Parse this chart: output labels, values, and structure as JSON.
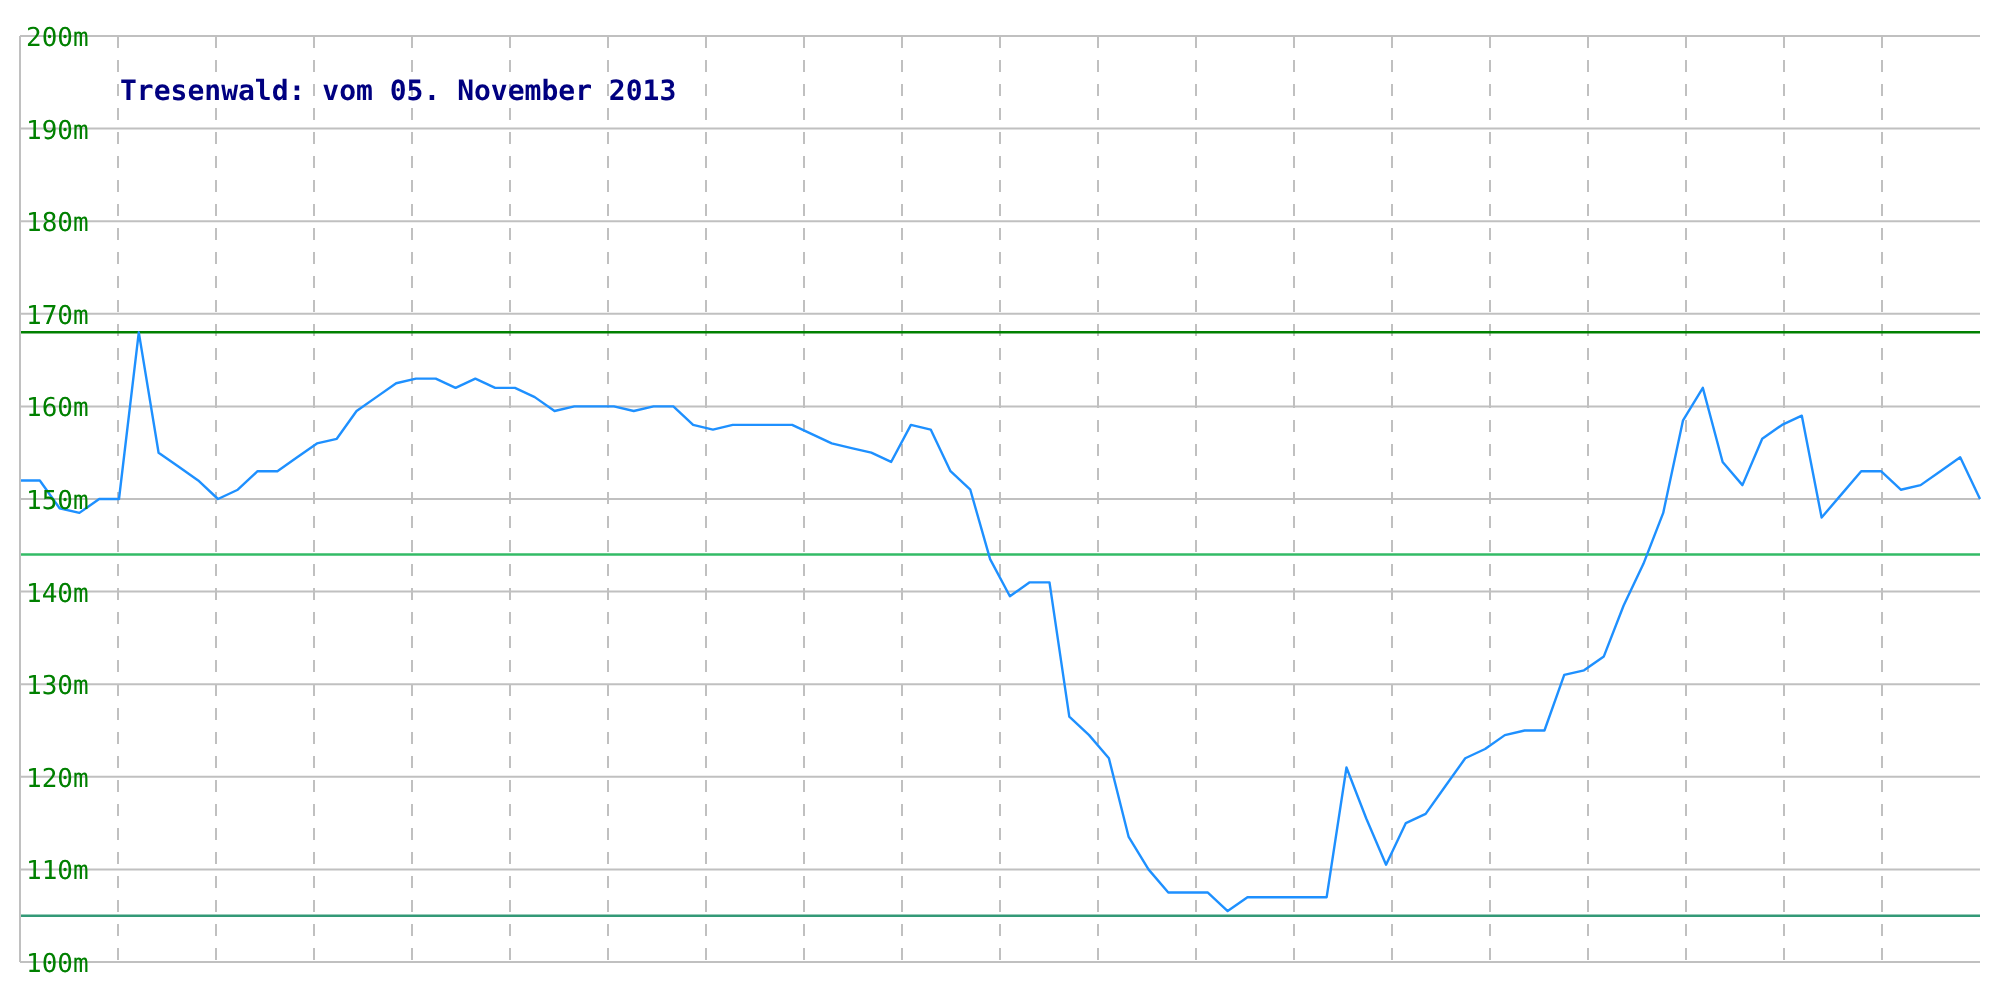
{
  "chart_data": {
    "type": "line",
    "title": "Tresenwald: vom 05. November 2013",
    "categories": [
      null,
      null,
      null,
      null,
      null,
      null,
      null,
      null,
      null,
      null,
      null,
      null,
      null,
      null,
      null,
      null,
      null,
      null,
      null,
      null,
      null,
      null,
      null,
      null,
      null,
      null,
      null,
      null,
      null,
      null,
      null,
      null,
      null,
      null,
      null,
      null,
      null,
      null,
      null,
      null,
      null,
      null,
      null,
      null,
      null,
      null,
      null,
      null,
      null,
      null,
      null,
      null,
      null,
      null,
      null,
      null,
      null,
      null,
      null,
      null,
      null,
      null,
      null,
      null,
      null,
      null,
      null,
      null,
      null,
      null,
      null,
      null,
      null,
      null,
      null,
      null,
      null,
      null,
      null,
      null,
      null,
      null,
      null,
      null,
      null,
      null,
      null,
      null,
      null,
      null,
      null,
      null,
      null,
      null,
      null,
      null,
      null,
      null,
      null,
      null
    ],
    "series": [
      {
        "color": "#1e90ff",
        "values": [
          152,
          152,
          149,
          148.5,
          150,
          150,
          168,
          155,
          153.5,
          152,
          150,
          151,
          153,
          153,
          154.5,
          156,
          156.5,
          159.5,
          161,
          162.5,
          163,
          163,
          162,
          163,
          162,
          162,
          161,
          159.5,
          160,
          160,
          160,
          159.5,
          160,
          160,
          158,
          157.5,
          158,
          158,
          158,
          158,
          157,
          156,
          155.5,
          155,
          154,
          158,
          157.5,
          153,
          151,
          143.5,
          139.5,
          141,
          141,
          126.5,
          124.5,
          122,
          113.5,
          110,
          107.5,
          107.5,
          107.5,
          105.5,
          107,
          107,
          107,
          107,
          107,
          121,
          115.5,
          110.5,
          115,
          116,
          119,
          122,
          123,
          124.5,
          125,
          125,
          131,
          131.5,
          133,
          138.5,
          143,
          148.5,
          158.5,
          162,
          154,
          151.5,
          156.5,
          158,
          159,
          148,
          150.5,
          153,
          153,
          151,
          151.5,
          153,
          154.5,
          150
        ]
      }
    ],
    "ylim": [
      100,
      200
    ],
    "yticks": [
      {
        "value": 100,
        "label": "100m"
      },
      {
        "value": 110,
        "label": "110m"
      },
      {
        "value": 120,
        "label": "120m"
      },
      {
        "value": 130,
        "label": "130m"
      },
      {
        "value": 140,
        "label": "140m"
      },
      {
        "value": 150,
        "label": "150m"
      },
      {
        "value": 160,
        "label": "160m"
      },
      {
        "value": 170,
        "label": "170m"
      },
      {
        "value": 180,
        "label": "180m"
      },
      {
        "value": 190,
        "label": "190m"
      },
      {
        "value": 200,
        "label": "200m"
      }
    ],
    "grid": true,
    "marker": "none",
    "line_style": "solid",
    "ref_lines": [
      {
        "axis": "y",
        "value": 168,
        "color": "#008000"
      },
      {
        "axis": "y",
        "value": 144,
        "color": "#33bb66"
      },
      {
        "axis": "y",
        "value": 105,
        "color": "#339977"
      }
    ]
  }
}
